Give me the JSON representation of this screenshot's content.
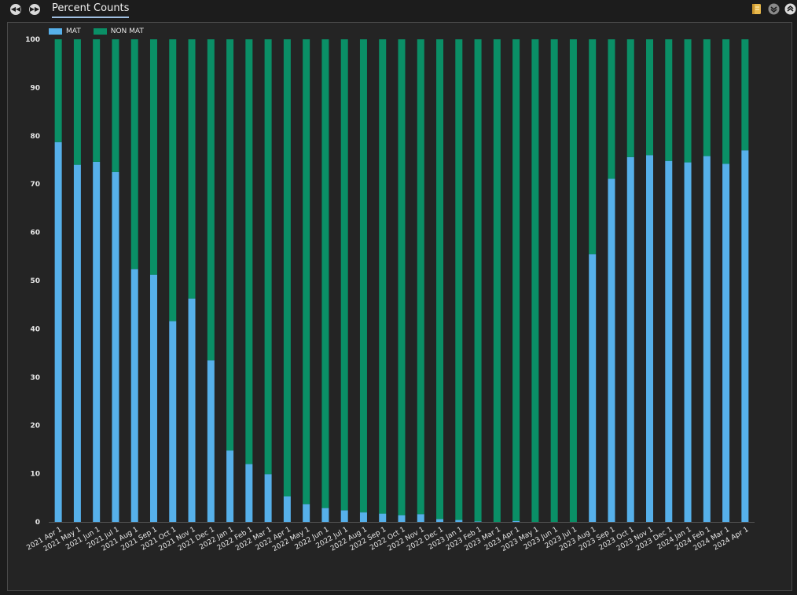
{
  "header": {
    "back_icon": "rewind-icon",
    "forward_icon": "fast-forward-icon",
    "tab_title": "Percent Counts",
    "tools": [
      "notes-icon",
      "collapse-down-icon",
      "collapse-up-icon"
    ]
  },
  "chart_data": {
    "type": "bar",
    "stacked": true,
    "title": "Percent Counts",
    "xlabel": "",
    "ylabel": "",
    "ylim": [
      0,
      100
    ],
    "yticks": [
      0,
      10,
      20,
      30,
      40,
      50,
      60,
      70,
      80,
      90,
      100
    ],
    "grid": false,
    "legend": "top-left",
    "categories": [
      "2021 Apr 1",
      "2021 May 1",
      "2021 Jun 1",
      "2021 Jul 1",
      "2021 Aug 1",
      "2021 Sep 1",
      "2021 Oct 1",
      "2021 Nov 1",
      "2021 Dec 1",
      "2022 Jan 1",
      "2022 Feb 1",
      "2022 Mar 1",
      "2022 Apr 1",
      "2022 May 1",
      "2022 Jun 1",
      "2022 Jul 1",
      "2022 Aug 1",
      "2022 Sep 1",
      "2022 Oct 1",
      "2022 Nov 1",
      "2022 Dec 1",
      "2023 Jan 1",
      "2023 Feb 1",
      "2023 Mar 1",
      "2023 Apr 1",
      "2023 May 1",
      "2023 Jun 1",
      "2023 Jul 1",
      "2023 Aug 1",
      "2023 Sep 1",
      "2023 Oct 1",
      "2023 Nov 1",
      "2023 Dec 1",
      "2024 Jan 1",
      "2024 Feb 1",
      "2024 Mar 1",
      "2024 Apr 1"
    ],
    "series": [
      {
        "name": "MAT",
        "color": "#56b0ea",
        "values": [
          78.7,
          74.0,
          74.6,
          72.5,
          52.4,
          51.2,
          41.6,
          46.3,
          33.5,
          14.8,
          12.0,
          9.9,
          5.3,
          3.7,
          2.9,
          2.4,
          2.0,
          1.7,
          1.4,
          1.6,
          0.6,
          0.4,
          0.1,
          0.0,
          0.2,
          0.0,
          0.0,
          0.0,
          55.5,
          71.1,
          75.6,
          76.0,
          74.8,
          74.5,
          75.8,
          74.2,
          77.0
        ]
      },
      {
        "name": "NON MAT",
        "color": "#0a8f66",
        "values": [
          21.3,
          26.0,
          25.4,
          27.5,
          47.6,
          48.8,
          58.4,
          53.7,
          66.5,
          85.2,
          88.0,
          90.1,
          94.7,
          96.3,
          97.1,
          97.6,
          98.0,
          98.3,
          98.6,
          98.4,
          99.4,
          99.6,
          99.9,
          100.0,
          99.8,
          100.0,
          100.0,
          100.0,
          44.5,
          28.9,
          24.4,
          24.0,
          25.2,
          25.5,
          24.2,
          25.8,
          23.0
        ]
      }
    ]
  }
}
